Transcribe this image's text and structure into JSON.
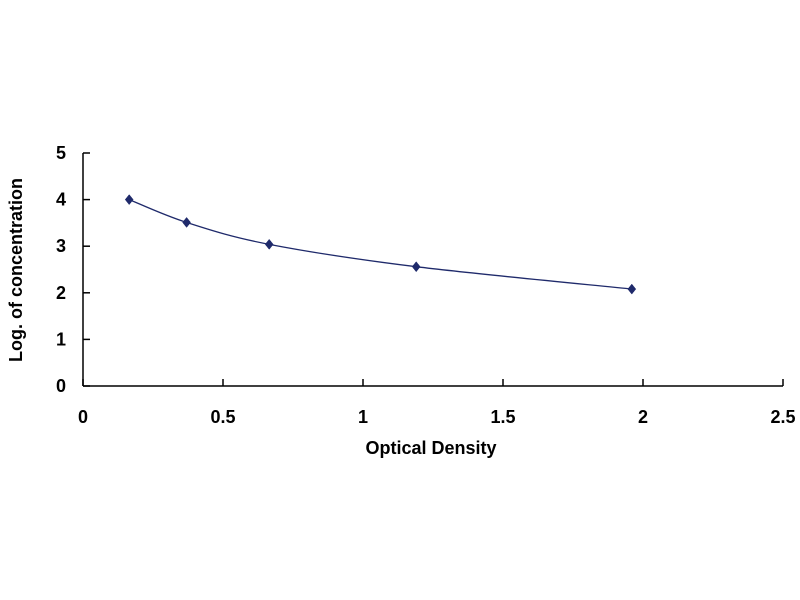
{
  "chart_data": {
    "type": "scatter",
    "title": "",
    "xlabel": "Optical Density",
    "ylabel": "Log. of concentration",
    "xlim": [
      0,
      2.5
    ],
    "ylim": [
      0,
      5
    ],
    "x_ticks": [
      0,
      0.5,
      1,
      1.5,
      2,
      2.5
    ],
    "x_tick_labels": [
      "0",
      "0.5",
      "1",
      "1.5",
      "2",
      "2.5"
    ],
    "y_ticks": [
      0,
      1,
      2,
      3,
      4,
      5
    ],
    "y_tick_labels": [
      "0",
      "1",
      "2",
      "3",
      "4",
      "5"
    ],
    "grid": false,
    "legend": "none",
    "series": [
      {
        "marker": "diamond",
        "smooth_line": true,
        "color": "#1f2a6b",
        "x": [
          0.165,
          0.37,
          0.665,
          1.19,
          1.96
        ],
        "y": [
          4.0,
          3.51,
          3.04,
          2.56,
          2.08
        ]
      }
    ]
  }
}
